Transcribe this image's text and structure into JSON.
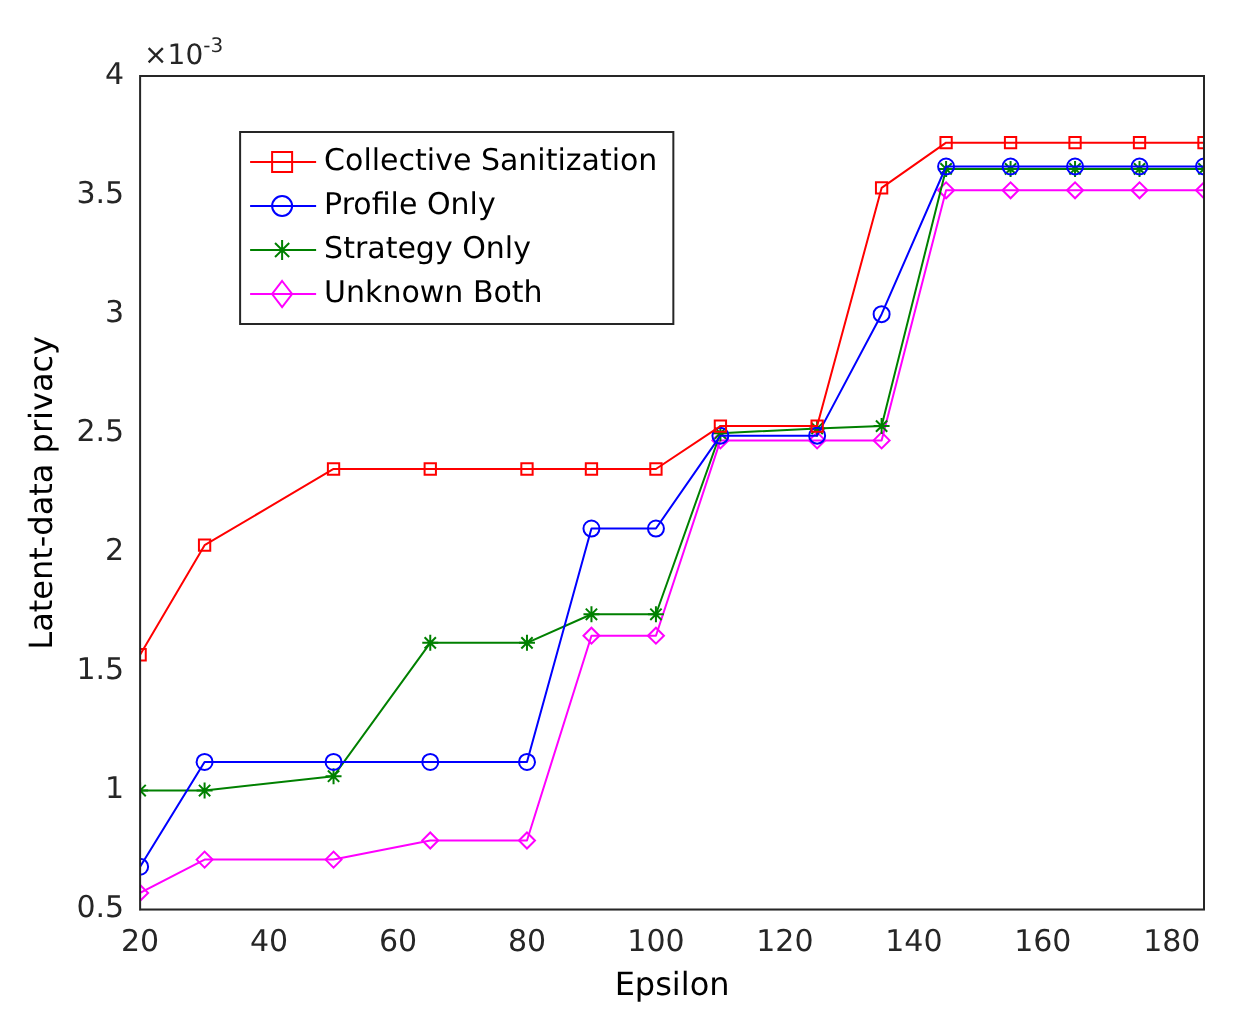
{
  "chart_data": {
    "type": "line",
    "xlabel": "Epsilon",
    "ylabel": "Latent-data privacy",
    "annotations": [
      "×10$^{-3}$"
    ],
    "x": [
      20,
      30,
      50,
      65,
      80,
      90,
      100,
      110,
      125,
      135,
      145,
      155,
      165,
      175,
      185
    ],
    "series": [
      {
        "name": "Collective Sanitization",
        "color": "#ff0000",
        "marker": "square",
        "values": [
          1.57,
          2.03,
          2.35,
          2.35,
          2.35,
          2.35,
          2.35,
          2.53,
          2.53,
          3.53,
          3.72,
          3.72,
          3.72,
          3.72,
          3.72
        ]
      },
      {
        "name": "Profile Only",
        "color": "#0000ff",
        "marker": "circle",
        "values": [
          0.68,
          1.12,
          1.12,
          1.12,
          1.12,
          2.1,
          2.1,
          2.49,
          2.49,
          3.0,
          3.62,
          3.62,
          3.62,
          3.62,
          3.62
        ]
      },
      {
        "name": "Strategy Only",
        "color": "#008000",
        "marker": "cross",
        "values": [
          1.0,
          1.0,
          1.06,
          1.62,
          1.62,
          1.74,
          1.74,
          2.5,
          2.52,
          2.53,
          3.61,
          3.61,
          3.61,
          3.61,
          3.61
        ]
      },
      {
        "name": "Unknown Both",
        "color": "#ff00ff",
        "marker": "diamond",
        "values": [
          0.57,
          0.71,
          0.71,
          0.79,
          0.79,
          1.65,
          1.65,
          2.47,
          2.47,
          2.47,
          3.52,
          3.52,
          3.52,
          3.52,
          3.52
        ]
      }
    ],
    "xlim": [
      20,
      185
    ],
    "xticks": [
      20,
      40,
      60,
      80,
      100,
      120,
      140,
      160,
      180
    ],
    "ylim": [
      0.5,
      4
    ],
    "yticks": [
      0.5,
      1,
      1.5,
      2,
      2.5,
      3,
      3.5,
      4
    ],
    "grid": false,
    "legend": "top left",
    "line_style": "solid"
  }
}
